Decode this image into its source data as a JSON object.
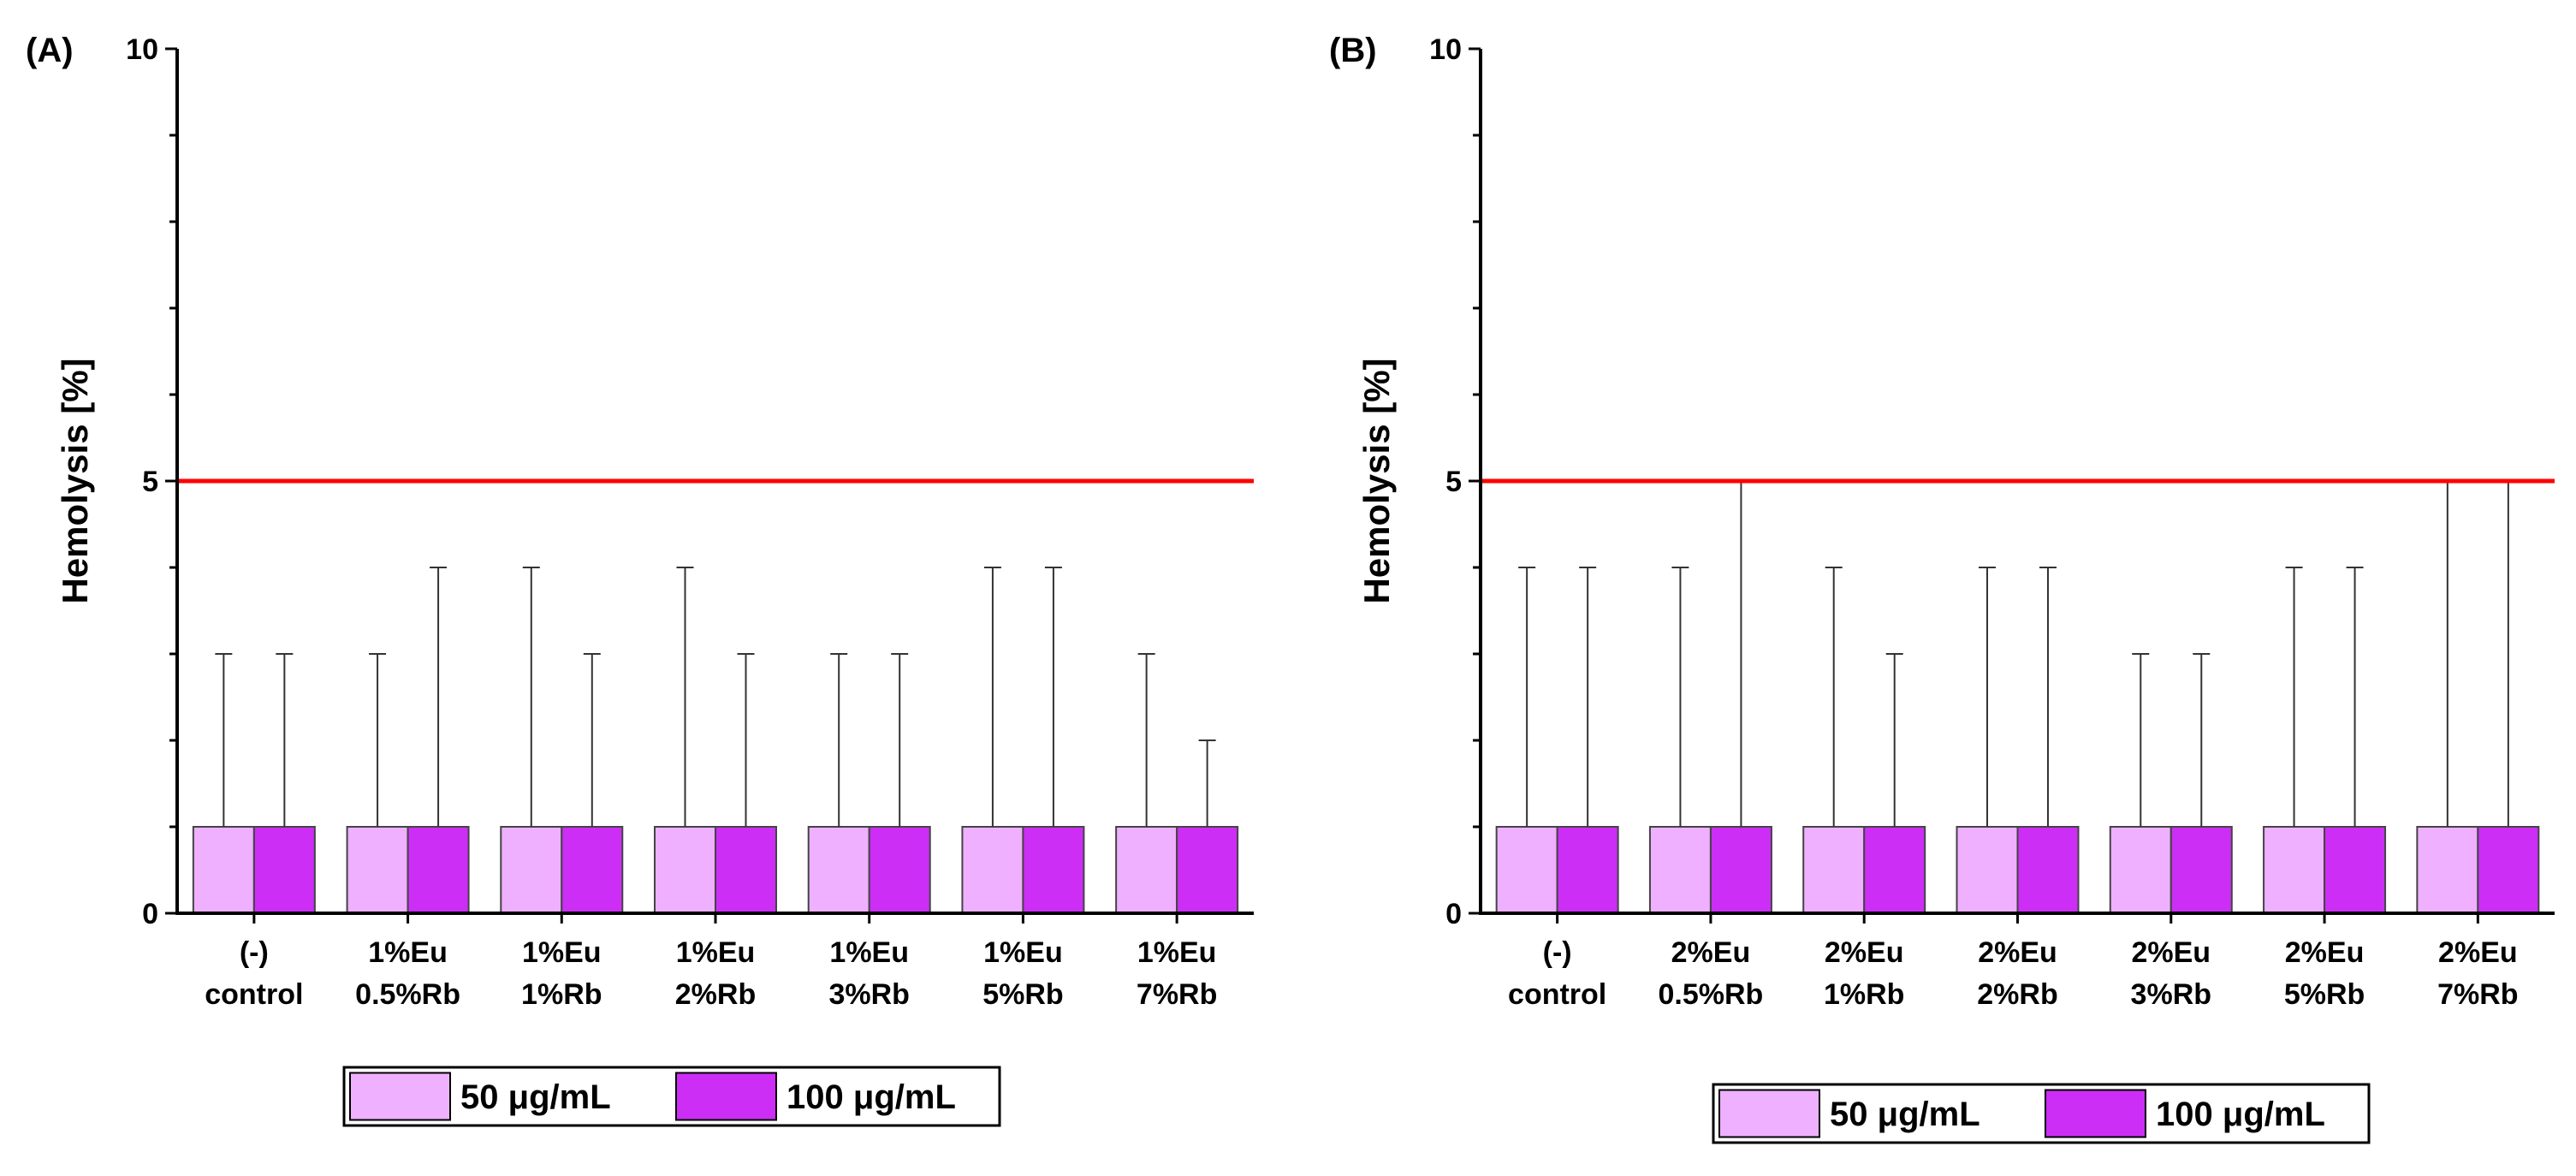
{
  "colors": {
    "series_50": "#eeb0ff",
    "series_100": "#cc2ef5",
    "threshold": "#ff0000",
    "axis": "#000000",
    "bar_border": "#444444"
  },
  "chart_data": [
    {
      "type": "bar",
      "panel_label": "(A)",
      "title": "",
      "xlabel": "",
      "ylabel": "Hemolysis [%]",
      "ylim": [
        0,
        10
      ],
      "yticks": [
        0,
        5,
        10
      ],
      "threshold": 5,
      "categories": [
        [
          "(-)",
          "control"
        ],
        [
          "1%Eu",
          "0.5%Rb"
        ],
        [
          "1%Eu",
          "1%Rb"
        ],
        [
          "1%Eu",
          "2%Rb"
        ],
        [
          "1%Eu",
          "3%Rb"
        ],
        [
          "1%Eu",
          "5%Rb"
        ],
        [
          "1%Eu",
          "7%Rb"
        ]
      ],
      "series": [
        {
          "name": "50 μg/mL",
          "color_key": "series_50",
          "values": [
            1,
            1,
            1,
            1,
            1,
            1,
            1
          ],
          "errors": [
            2,
            2,
            3,
            3,
            2,
            3,
            2
          ]
        },
        {
          "name": "100 μg/mL",
          "color_key": "series_100",
          "values": [
            1,
            1,
            1,
            1,
            1,
            1,
            1
          ],
          "errors": [
            2,
            3,
            2,
            2,
            2,
            3,
            1
          ]
        }
      ],
      "legend_position": "bottom-center"
    },
    {
      "type": "bar",
      "panel_label": "(B)",
      "title": "",
      "xlabel": "",
      "ylabel": "Hemolysis [%]",
      "ylim": [
        0,
        10
      ],
      "yticks": [
        0,
        5,
        10
      ],
      "threshold": 5,
      "categories": [
        [
          "(-)",
          "control"
        ],
        [
          "2%Eu",
          "0.5%Rb"
        ],
        [
          "2%Eu",
          "1%Rb"
        ],
        [
          "2%Eu",
          "2%Rb"
        ],
        [
          "2%Eu",
          "3%Rb"
        ],
        [
          "2%Eu",
          "5%Rb"
        ],
        [
          "2%Eu",
          "7%Rb"
        ]
      ],
      "series": [
        {
          "name": "50 μg/mL",
          "color_key": "series_50",
          "values": [
            1,
            1,
            1,
            1,
            1,
            1,
            1
          ],
          "errors": [
            3,
            3,
            3,
            3,
            2,
            3,
            4
          ]
        },
        {
          "name": "100 μg/mL",
          "color_key": "series_100",
          "values": [
            1,
            1,
            1,
            1,
            1,
            1,
            1
          ],
          "errors": [
            3,
            4,
            2,
            3,
            2,
            3,
            4
          ]
        }
      ],
      "legend_position": "bottom-center"
    }
  ]
}
